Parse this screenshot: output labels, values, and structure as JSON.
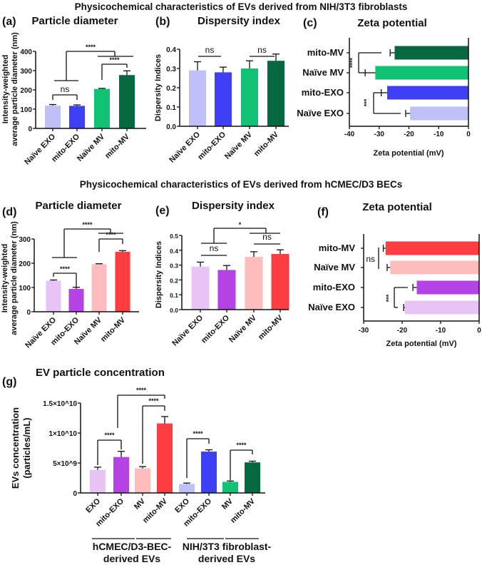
{
  "figure_titles": {
    "nih": "Physicochemical characteristics of EVs derived from NIH/3T3 fibroblasts",
    "hcmec": "Physicochemical characteristics of EVs derived from hCMEC/D3 BECs"
  },
  "chart_data": [
    {
      "id": "a",
      "panel_label": "(a)",
      "title": "Particle diameter",
      "type": "bar",
      "orientation": "vertical",
      "categories": [
        "Naïve EXO",
        "mito-EXO",
        "Naïve MV",
        "mito-MV"
      ],
      "values": [
        118,
        117,
        205,
        277
      ],
      "errors": [
        6,
        5,
        3,
        22
      ],
      "colors": [
        "#bfbffa",
        "#3f3ff5",
        "#12c274",
        "#06683f"
      ],
      "ylabel": [
        "Intensity-weighted",
        "average particle diameter (nm)"
      ],
      "ylim": [
        0,
        400
      ],
      "yticks": [
        0,
        100,
        200,
        300,
        400
      ],
      "ytick_labels": [
        "0",
        "100",
        "200",
        "300",
        "400"
      ],
      "significance": [
        {
          "a": [
            0
          ],
          "b": [
            1
          ],
          "label": "ns"
        },
        {
          "a": [
            2
          ],
          "b": [
            3
          ],
          "label": "****"
        },
        {
          "a": [
            0,
            1
          ],
          "b": [
            2,
            3
          ],
          "label": "****"
        }
      ]
    },
    {
      "id": "b",
      "panel_label": "(b)",
      "title": "Dispersity index",
      "type": "bar",
      "orientation": "vertical",
      "categories": [
        "Naïve EXO",
        "mito-EXO",
        "Naïve MV",
        "mito-MV"
      ],
      "values": [
        0.29,
        0.28,
        0.3,
        0.34
      ],
      "errors": [
        0.045,
        0.027,
        0.04,
        0.035
      ],
      "colors": [
        "#bfbffa",
        "#3f3ff5",
        "#12c274",
        "#06683f"
      ],
      "ylabel": [
        "Dispersity Indices"
      ],
      "ylim": [
        0,
        0.4
      ],
      "yticks": [
        0,
        0.1,
        0.2,
        0.3,
        0.4
      ],
      "ytick_labels": [
        "0.0",
        "0.1",
        "0.2",
        "0.3",
        "0.4"
      ],
      "significance": [
        {
          "a": [
            0
          ],
          "b": [
            1
          ],
          "label": "ns"
        },
        {
          "a": [
            2
          ],
          "b": [
            3
          ],
          "label": "ns"
        }
      ]
    },
    {
      "id": "c",
      "panel_label": "(c)",
      "title": "Zeta potential",
      "type": "bar",
      "orientation": "horizontal",
      "categories": [
        "mito-MV",
        "Naïve MV",
        "mito-EXO",
        "Naïve EXO"
      ],
      "values": [
        -24.8,
        -31.3,
        -27.3,
        -19.6
      ],
      "errors": [
        1.5,
        3.4,
        2.0,
        1.5
      ],
      "colors": [
        "#06683f",
        "#12c274",
        "#3f3ff5",
        "#bfbffa"
      ],
      "xlabel": "Zeta potential (mV)",
      "xlim": [
        -40,
        0
      ],
      "xticks": [
        -40,
        -30,
        -20,
        -10,
        0
      ],
      "xtick_labels": [
        "-40",
        "-30",
        "-20",
        "-10",
        "0"
      ],
      "significance": [
        {
          "a": [
            0
          ],
          "b": [
            1
          ],
          "label": "****"
        },
        {
          "a": [
            2
          ],
          "b": [
            3
          ],
          "label": "***"
        }
      ]
    },
    {
      "id": "d",
      "panel_label": "(d)",
      "title": "Particle diameter",
      "type": "bar",
      "orientation": "vertical",
      "categories": [
        "Naïve EXO",
        "mito-EXO",
        "Naïve MV",
        "mito-MV"
      ],
      "values": [
        128,
        94,
        196,
        247
      ],
      "errors": [
        3,
        7,
        2,
        5
      ],
      "colors": [
        "#e8c3f5",
        "#b442e4",
        "#fdbdbd",
        "#fd3d42"
      ],
      "ylabel": [
        "Intensity-weighted",
        "average particle diameter (nm)"
      ],
      "ylim": [
        0,
        300
      ],
      "yticks": [
        0,
        100,
        200,
        300
      ],
      "ytick_labels": [
        "0",
        "100",
        "200",
        "300"
      ],
      "significance": [
        {
          "a": [
            0
          ],
          "b": [
            1
          ],
          "label": "****"
        },
        {
          "a": [
            2
          ],
          "b": [
            3
          ],
          "label": "****"
        },
        {
          "a": [
            0,
            1
          ],
          "b": [
            2,
            3
          ],
          "label": "****"
        }
      ]
    },
    {
      "id": "e",
      "panel_label": "(e)",
      "title": "Dispersity index",
      "type": "bar",
      "orientation": "vertical",
      "categories": [
        "Naïve EXO",
        "mito-EXO",
        "Naïve MV",
        "mito-MV"
      ],
      "values": [
        0.29,
        0.267,
        0.355,
        0.375
      ],
      "errors": [
        0.03,
        0.03,
        0.035,
        0.028
      ],
      "colors": [
        "#e8c3f5",
        "#b442e4",
        "#fdbdbd",
        "#fd3d42"
      ],
      "ylabel": [
        "Dispersity Indices"
      ],
      "ylim": [
        0,
        0.5
      ],
      "yticks": [
        0,
        0.1,
        0.2,
        0.3,
        0.4,
        0.5
      ],
      "ytick_labels": [
        "0.0",
        "0.1",
        "0.2",
        "0.3",
        "0.4",
        "0.5"
      ],
      "significance": [
        {
          "a": [
            0
          ],
          "b": [
            1
          ],
          "label": "ns"
        },
        {
          "a": [
            2
          ],
          "b": [
            3
          ],
          "label": "ns"
        },
        {
          "a": [
            0,
            1
          ],
          "b": [
            2,
            3
          ],
          "label": "*"
        }
      ]
    },
    {
      "id": "f",
      "panel_label": "(f)",
      "title": "Zeta potential",
      "type": "bar",
      "orientation": "horizontal",
      "categories": [
        "mito-MV",
        "Naïve MV",
        "mito-EXO",
        "Naïve EXO"
      ],
      "values": [
        -24.3,
        -23.1,
        -16.2,
        -19.3
      ],
      "errors": [
        0.6,
        0.8,
        1.0,
        0.3
      ],
      "colors": [
        "#fd3d42",
        "#fdbdbd",
        "#b442e4",
        "#e8c3f5"
      ],
      "xlabel": "Zeta potential (mV)",
      "xlim": [
        -30,
        0
      ],
      "xticks": [
        -30,
        -20,
        -10,
        0
      ],
      "xtick_labels": [
        "-30",
        "-20",
        "-10",
        "0"
      ],
      "significance": [
        {
          "a": [
            0
          ],
          "b": [
            1
          ],
          "label": "ns"
        },
        {
          "a": [
            2
          ],
          "b": [
            3
          ],
          "label": "***"
        }
      ]
    },
    {
      "id": "g",
      "panel_label": "(g)",
      "title": "EV particle concentration",
      "type": "bar",
      "orientation": "vertical",
      "categories": [
        "EXO",
        "mito-EXO",
        "MV",
        "mito-MV",
        "EXO",
        "mito-EXO",
        "MV",
        "mito-MV"
      ],
      "values": [
        3850000000,
        6000000000,
        4100000000,
        11600000000,
        1500000000,
        6900000000,
        1850000000,
        5100000000
      ],
      "errors": [
        450000000,
        950000000,
        300000000,
        1150000000,
        150000000,
        300000000,
        150000000,
        200000000
      ],
      "colors": [
        "#e8c3f5",
        "#b442e4",
        "#fdbdbd",
        "#fd3d42",
        "#bfbffa",
        "#3f3ff5",
        "#12c274",
        "#06683f"
      ],
      "ylabel": [
        "EVs concentration",
        "(particles/mL)"
      ],
      "ylim": [
        0,
        15000000000
      ],
      "yticks": [
        0,
        5000000000,
        10000000000,
        15000000000
      ],
      "ytick_labels": [
        "0",
        "5×10^9",
        "1×10^10",
        "1.5×10^10"
      ],
      "groups": [
        {
          "label": [
            "hCMEC/D3-BEC-",
            "derived EVs"
          ],
          "members": [
            0,
            1,
            2,
            3
          ]
        },
        {
          "label": [
            "NIH/3T3 fibroblast-",
            "derived EVs"
          ],
          "members": [
            4,
            5,
            6,
            7
          ]
        }
      ],
      "significance": [
        {
          "a": [
            0
          ],
          "b": [
            1
          ],
          "label": "****"
        },
        {
          "a": [
            2
          ],
          "b": [
            3
          ],
          "label": "****"
        },
        {
          "a": [
            1
          ],
          "b": [
            3
          ],
          "label": "****"
        },
        {
          "a": [
            4
          ],
          "b": [
            5
          ],
          "label": "****"
        },
        {
          "a": [
            6
          ],
          "b": [
            7
          ],
          "label": "****"
        }
      ]
    }
  ]
}
